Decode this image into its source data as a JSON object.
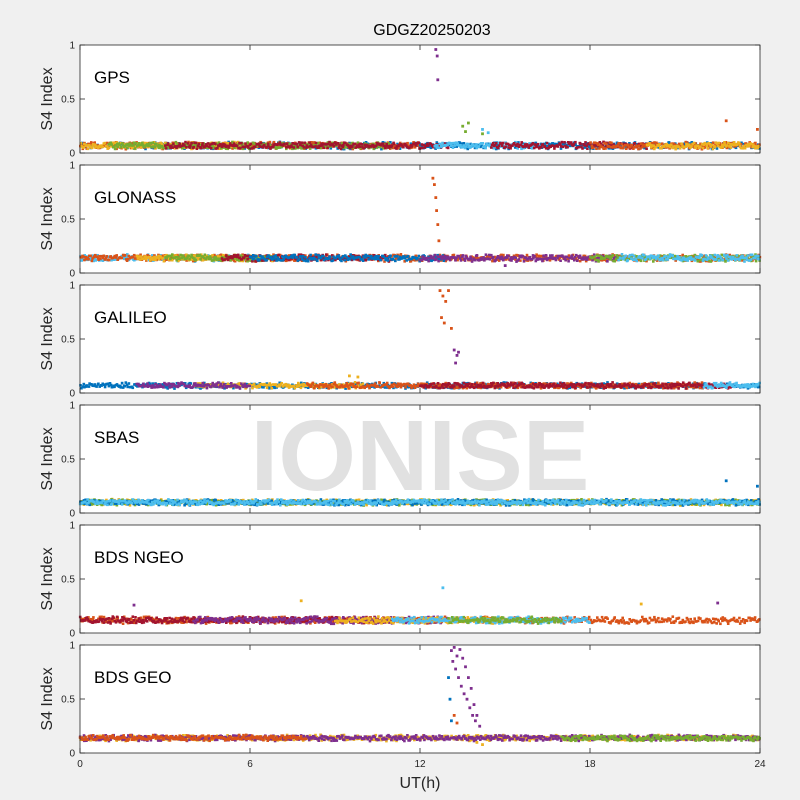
{
  "chart_data": {
    "type": "scatter",
    "title": "GDGZ20250203",
    "xlabel": "UT(h)",
    "ylabel": "S4 Index",
    "xlim": [
      0,
      24
    ],
    "ylim": [
      0,
      1
    ],
    "xticks": [
      0,
      6,
      12,
      18,
      24
    ],
    "yticks": [
      0,
      0.5,
      1
    ],
    "xtick_labels": [
      "0",
      "6",
      "12",
      "18",
      "24"
    ],
    "ytick_labels": [
      "0",
      "0.5",
      "1"
    ],
    "watermark": "IONISE",
    "grid": false,
    "colors": {
      "blue": "#0072bd",
      "orange": "#d95319",
      "yellow": "#edb120",
      "purple": "#7e2f8e",
      "green": "#77ac30",
      "cyan": "#4dbeee",
      "darkred": "#a2142f"
    },
    "panels": [
      {
        "label": "GPS",
        "baseline": 0.07,
        "noise": 0.025,
        "bands": [
          {
            "color": "blue",
            "x0": 0,
            "x1": 24
          },
          {
            "color": "orange",
            "x0": 0,
            "x1": 12
          },
          {
            "color": "yellow",
            "x0": 0,
            "x1": 6
          },
          {
            "color": "green",
            "x0": 1,
            "x1": 11
          },
          {
            "color": "darkred",
            "x0": 3,
            "x1": 13
          },
          {
            "color": "cyan",
            "x0": 12.5,
            "x1": 16
          },
          {
            "color": "darkred",
            "x0": 14.5,
            "x1": 20
          },
          {
            "color": "orange",
            "x0": 18,
            "x1": 24
          },
          {
            "color": "yellow",
            "x0": 20,
            "x1": 24
          }
        ],
        "spikes": [
          {
            "color": "purple",
            "x": [
              12.55,
              12.6,
              12.62
            ],
            "y": [
              0.96,
              0.9,
              0.68
            ]
          },
          {
            "color": "green",
            "x": [
              13.5,
              13.6,
              13.7,
              14.2
            ],
            "y": [
              0.25,
              0.2,
              0.28,
              0.18
            ]
          },
          {
            "color": "cyan",
            "x": [
              14.2,
              14.4
            ],
            "y": [
              0.22,
              0.19
            ]
          },
          {
            "color": "orange",
            "x": [
              22.8,
              23.9
            ],
            "y": [
              0.3,
              0.22
            ]
          }
        ]
      },
      {
        "label": "GLONASS",
        "baseline": 0.14,
        "noise": 0.025,
        "bands": [
          {
            "color": "cyan",
            "x0": 0,
            "x1": 6
          },
          {
            "color": "orange",
            "x0": 0,
            "x1": 24
          },
          {
            "color": "yellow",
            "x0": 2,
            "x1": 7
          },
          {
            "color": "green",
            "x0": 3,
            "x1": 7
          },
          {
            "color": "darkred",
            "x0": 5,
            "x1": 11
          },
          {
            "color": "blue",
            "x0": 6,
            "x1": 13
          },
          {
            "color": "purple",
            "x0": 12,
            "x1": 19
          },
          {
            "color": "green",
            "x0": 18,
            "x1": 24
          },
          {
            "color": "cyan",
            "x0": 19,
            "x1": 24
          }
        ],
        "spikes": [
          {
            "color": "orange",
            "x": [
              12.45,
              12.5,
              12.55,
              12.58,
              12.62,
              12.66
            ],
            "y": [
              0.88,
              0.82,
              0.7,
              0.58,
              0.45,
              0.3
            ]
          },
          {
            "color": "purple",
            "x": [
              15.0
            ],
            "y": [
              0.07
            ]
          }
        ]
      },
      {
        "label": "GALILEO",
        "baseline": 0.07,
        "noise": 0.02,
        "bands": [
          {
            "color": "blue",
            "x0": 0,
            "x1": 24
          },
          {
            "color": "yellow",
            "x0": 4,
            "x1": 10
          },
          {
            "color": "orange",
            "x0": 8,
            "x1": 22
          },
          {
            "color": "darkred",
            "x0": 12,
            "x1": 23
          },
          {
            "color": "purple",
            "x0": 2,
            "x1": 6
          },
          {
            "color": "cyan",
            "x0": 22,
            "x1": 24
          }
        ],
        "spikes": [
          {
            "color": "orange",
            "x": [
              12.7,
              12.8,
              12.9,
              13.0,
              12.75,
              12.85,
              13.1
            ],
            "y": [
              0.95,
              0.9,
              0.85,
              0.95,
              0.7,
              0.65,
              0.6
            ]
          },
          {
            "color": "purple",
            "x": [
              13.2,
              13.3,
              13.25,
              13.35
            ],
            "y": [
              0.4,
              0.35,
              0.28,
              0.38
            ]
          },
          {
            "color": "yellow",
            "x": [
              9.5,
              9.8
            ],
            "y": [
              0.16,
              0.15
            ]
          }
        ]
      },
      {
        "label": "SBAS",
        "baseline": 0.1,
        "noise": 0.02,
        "bands": [
          {
            "color": "yellow",
            "x0": 0,
            "x1": 24
          },
          {
            "color": "green",
            "x0": 0,
            "x1": 24
          },
          {
            "color": "blue",
            "x0": 0,
            "x1": 24
          },
          {
            "color": "cyan",
            "x0": 0,
            "x1": 24
          }
        ],
        "spikes": [
          {
            "color": "blue",
            "x": [
              22.8,
              23.9
            ],
            "y": [
              0.3,
              0.25
            ]
          }
        ]
      },
      {
        "label": "BDS NGEO",
        "baseline": 0.12,
        "noise": 0.025,
        "bands": [
          {
            "color": "orange",
            "x0": 0,
            "x1": 24
          },
          {
            "color": "darkred",
            "x0": 0,
            "x1": 11
          },
          {
            "color": "purple",
            "x0": 4,
            "x1": 13
          },
          {
            "color": "yellow",
            "x0": 9,
            "x1": 15
          },
          {
            "color": "cyan",
            "x0": 11,
            "x1": 18
          },
          {
            "color": "green",
            "x0": 13,
            "x1": 17
          }
        ],
        "spikes": [
          {
            "color": "cyan",
            "x": [
              12.8
            ],
            "y": [
              0.42
            ]
          },
          {
            "color": "yellow",
            "x": [
              7.8,
              19.8
            ],
            "y": [
              0.3,
              0.27
            ]
          },
          {
            "color": "purple",
            "x": [
              1.9,
              22.5
            ],
            "y": [
              0.26,
              0.28
            ]
          }
        ]
      },
      {
        "label": "BDS GEO",
        "baseline": 0.14,
        "noise": 0.02,
        "bands": [
          {
            "color": "yellow",
            "x0": 0,
            "x1": 24
          },
          {
            "color": "purple",
            "x0": 0,
            "x1": 24
          },
          {
            "color": "green",
            "x0": 17,
            "x1": 24
          },
          {
            "color": "orange",
            "x0": 0,
            "x1": 8
          }
        ],
        "spikes": [
          {
            "color": "purple",
            "x": [
              13.1,
              13.2,
              13.3,
              13.4,
              13.5,
              13.6,
              13.7,
              13.8,
              13.9,
              14.0,
              14.1,
              13.15,
              13.25,
              13.35,
              13.45,
              13.55,
              13.65,
              13.75,
              13.85,
              13.95
            ],
            "y": [
              0.95,
              0.98,
              0.9,
              0.96,
              0.88,
              0.8,
              0.7,
              0.6,
              0.45,
              0.35,
              0.25,
              0.85,
              0.78,
              0.7,
              0.62,
              0.55,
              0.5,
              0.42,
              0.35,
              0.3
            ]
          },
          {
            "color": "blue",
            "x": [
              13.0,
              13.05,
              13.1
            ],
            "y": [
              0.7,
              0.5,
              0.3
            ]
          },
          {
            "color": "orange",
            "x": [
              13.2,
              13.3
            ],
            "y": [
              0.35,
              0.28
            ]
          },
          {
            "color": "yellow",
            "x": [
              14.0,
              14.2
            ],
            "y": [
              0.1,
              0.08
            ]
          }
        ]
      }
    ]
  }
}
